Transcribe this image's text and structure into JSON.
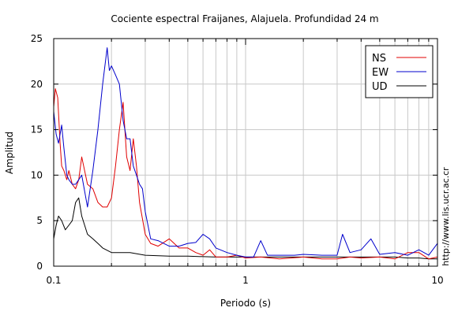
{
  "chart_data": {
    "type": "line",
    "title": "Cociente espectral Fraijanes, Alajuela. Profundidad 24 m",
    "xlabel": "Periodo (s)",
    "ylabel": "Amplitud",
    "xscale": "log",
    "xlim": [
      0.1,
      10
    ],
    "ylim": [
      0,
      25
    ],
    "xticks": [
      0.1,
      1,
      10
    ],
    "xtick_labels": [
      "0.1",
      "1",
      "10"
    ],
    "yticks": [
      0,
      5,
      10,
      15,
      20,
      25
    ],
    "ytick_labels": [
      "0",
      "5",
      "10",
      "15",
      "20",
      "25"
    ],
    "grid": true,
    "legend_position": "top-right",
    "side_text": "http://www.lis.ucr.ac.cr",
    "series": [
      {
        "name": "NS",
        "color": "#e00000",
        "x": [
          0.1,
          0.102,
          0.105,
          0.108,
          0.11,
          0.113,
          0.117,
          0.12,
          0.125,
          0.13,
          0.135,
          0.14,
          0.15,
          0.16,
          0.17,
          0.18,
          0.19,
          0.2,
          0.21,
          0.22,
          0.23,
          0.24,
          0.25,
          0.26,
          0.27,
          0.28,
          0.3,
          0.32,
          0.35,
          0.4,
          0.45,
          0.5,
          0.55,
          0.6,
          0.65,
          0.7,
          0.8,
          0.9,
          1.0,
          1.2,
          1.5,
          2.0,
          2.5,
          3.0,
          3.5,
          4.0,
          5.0,
          6.0,
          7.0,
          8.0,
          9.0,
          10.0
        ],
        "y": [
          17.5,
          19.5,
          18.5,
          13.5,
          11.0,
          10.5,
          9.5,
          10.5,
          9.0,
          8.5,
          9.5,
          12.0,
          9.0,
          8.5,
          7.0,
          6.5,
          6.5,
          7.5,
          11.0,
          15.0,
          18.0,
          12.0,
          10.5,
          14.0,
          11.0,
          7.0,
          3.5,
          2.5,
          2.2,
          3.0,
          2.0,
          2.0,
          1.5,
          1.2,
          1.8,
          1.0,
          1.0,
          1.2,
          0.9,
          1.0,
          0.8,
          1.0,
          0.8,
          0.8,
          1.0,
          0.9,
          1.0,
          0.8,
          1.5,
          1.5,
          0.8,
          1.0
        ]
      },
      {
        "name": "EW",
        "color": "#0000cc",
        "x": [
          0.1,
          0.103,
          0.106,
          0.11,
          0.113,
          0.117,
          0.12,
          0.125,
          0.13,
          0.135,
          0.14,
          0.15,
          0.16,
          0.17,
          0.18,
          0.19,
          0.195,
          0.2,
          0.21,
          0.22,
          0.23,
          0.24,
          0.25,
          0.26,
          0.27,
          0.28,
          0.29,
          0.3,
          0.32,
          0.35,
          0.4,
          0.45,
          0.5,
          0.55,
          0.6,
          0.65,
          0.7,
          0.8,
          0.9,
          1.0,
          1.1,
          1.2,
          1.3,
          1.5,
          1.8,
          2.0,
          2.5,
          3.0,
          3.2,
          3.5,
          4.0,
          4.5,
          5.0,
          6.0,
          7.0,
          8.0,
          9.0,
          10.0
        ],
        "y": [
          17.0,
          14.5,
          13.5,
          15.5,
          13.0,
          10.0,
          9.5,
          9.0,
          9.0,
          9.5,
          10.0,
          6.5,
          10.5,
          15.0,
          20.0,
          24.0,
          21.5,
          22.0,
          21.0,
          20.0,
          16.0,
          14.0,
          14.0,
          11.0,
          10.0,
          9.0,
          8.5,
          6.0,
          3.0,
          2.8,
          2.2,
          2.2,
          2.5,
          2.6,
          3.5,
          3.0,
          2.0,
          1.5,
          1.2,
          1.0,
          1.0,
          2.8,
          1.2,
          1.2,
          1.2,
          1.3,
          1.2,
          1.2,
          3.5,
          1.5,
          1.8,
          3.0,
          1.3,
          1.5,
          1.2,
          1.8,
          1.2,
          2.5
        ]
      },
      {
        "name": "UD",
        "color": "#000000",
        "x": [
          0.1,
          0.103,
          0.106,
          0.11,
          0.115,
          0.12,
          0.125,
          0.13,
          0.135,
          0.14,
          0.15,
          0.16,
          0.17,
          0.18,
          0.2,
          0.25,
          0.3,
          0.4,
          0.5,
          0.7,
          1.0,
          1.5,
          2.0,
          3.0,
          4.0,
          5.0,
          6.0,
          7.0,
          8.0,
          9.0,
          10.0
        ],
        "y": [
          3.0,
          4.5,
          5.5,
          5.0,
          4.0,
          4.5,
          5.0,
          7.0,
          7.5,
          5.5,
          3.5,
          3.0,
          2.5,
          2.0,
          1.5,
          1.5,
          1.2,
          1.1,
          1.1,
          1.0,
          1.0,
          1.0,
          1.0,
          1.0,
          1.0,
          1.0,
          1.0,
          0.9,
          0.9,
          0.8,
          0.8
        ]
      }
    ]
  }
}
